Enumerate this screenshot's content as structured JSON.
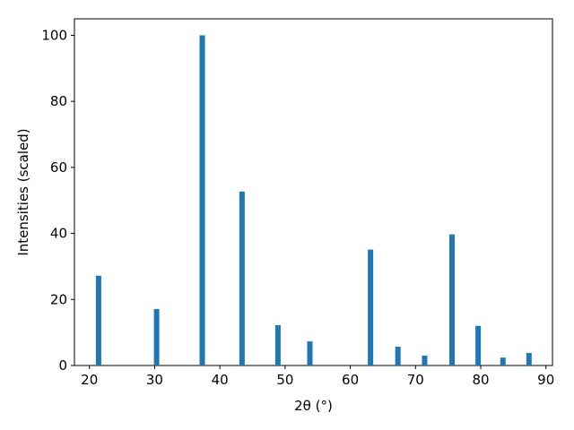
{
  "chart_data": {
    "type": "bar",
    "x": [
      21.4,
      30.3,
      37.3,
      43.4,
      48.9,
      53.8,
      63.1,
      67.3,
      71.4,
      75.6,
      79.6,
      83.4,
      87.4
    ],
    "values": [
      27.2,
      17.1,
      100,
      52.7,
      12.2,
      7.3,
      35.1,
      5.7,
      3.0,
      39.7,
      12.0,
      2.4,
      3.8
    ],
    "color": "#1f77b4",
    "xlabel": "2θ (°)",
    "ylabel": "Intensities (scaled)",
    "xlim": [
      17.7,
      91.0
    ],
    "ylim": [
      0,
      105
    ],
    "xticks": [
      20,
      30,
      40,
      50,
      60,
      70,
      80,
      90
    ],
    "yticks": [
      0,
      20,
      40,
      60,
      80,
      100
    ]
  }
}
